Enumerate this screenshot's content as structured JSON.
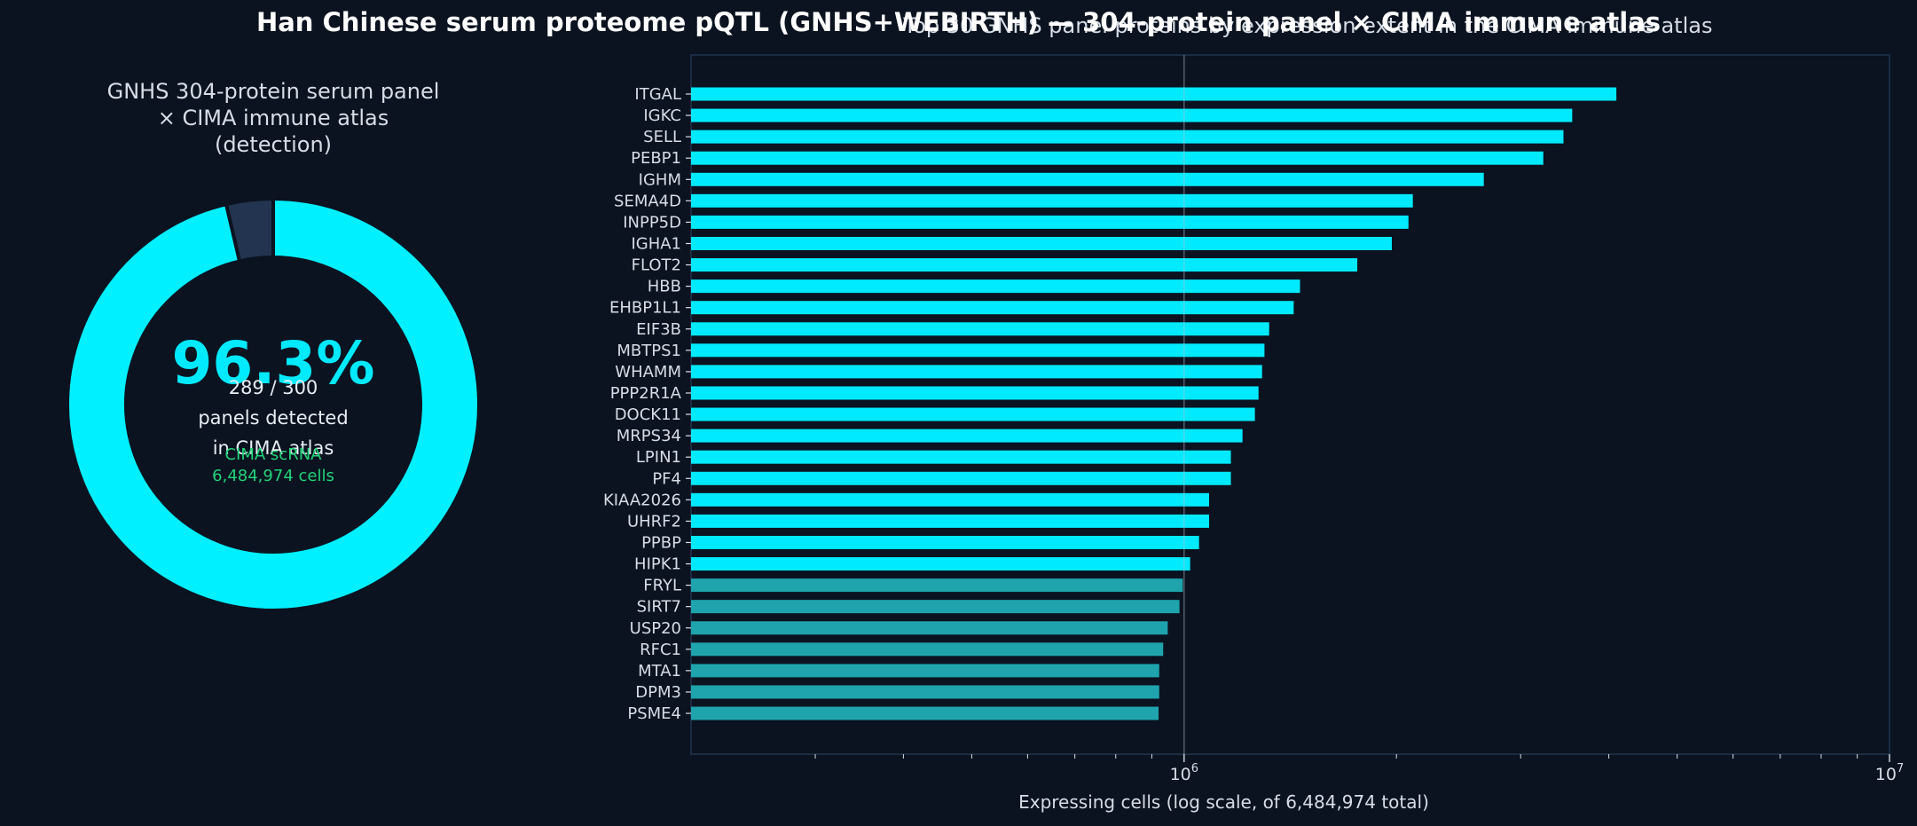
{
  "suptitle": "Han Chinese serum proteome pQTL (GNHS+WEBIRTH) — 304-protein panel × CIMA immune atlas",
  "donut": {
    "title_line1": "GNHS 304-protein serum panel",
    "title_line2": "× CIMA immune atlas (detection)",
    "percent_label": "96.3%",
    "count_label": "289 / 300",
    "sub_line1": "panels detected",
    "sub_line2": "in CIMA atlas",
    "cima_line1": "CIMA scRNA",
    "cima_line2": "6,484,974 cells",
    "colors": {
      "detected": "#00f0ff",
      "not_detected": "#22344f",
      "ring_edge": "#0b1320"
    }
  },
  "colors": {
    "background": "#0b1320",
    "bar_high": "#00eaff",
    "bar_low": "#1fa4ad",
    "axis_frame": "#1f3550",
    "reference_line": "#b9c4d0",
    "text": "#d6dde6"
  },
  "chart_data": [
    {
      "type": "pie",
      "subtype": "donut",
      "title": "GNHS 304-protein serum panel × CIMA immune atlas (detection)",
      "values": [
        289,
        11
      ],
      "total": 300
    },
    {
      "type": "bar",
      "orientation": "horizontal",
      "title": "Top 30 GNHS panel proteins by expression extent in the CIMA immune atlas",
      "xlabel": "Expressing cells (log scale, of 6,484,974 total)",
      "xscale": "log",
      "xlim": [
        200000,
        10000000
      ],
      "xticks": [
        {
          "value": 1000000,
          "base": "10",
          "exp": "6"
        },
        {
          "value": 10000000,
          "base": "10",
          "exp": "7"
        }
      ],
      "reference_line": 1000000,
      "categories": [
        "ITGAL",
        "IGKC",
        "SELL",
        "PEBP1",
        "IGHM",
        "SEMA4D",
        "INPP5D",
        "IGHA1",
        "FLOT2",
        "HBB",
        "EHBP1L1",
        "EIF3B",
        "MBTPS1",
        "WHAMM",
        "PPP2R1A",
        "DOCK11",
        "MRPS34",
        "LPIN1",
        "PF4",
        "KIAA2026",
        "UHRF2",
        "PPBP",
        "HIPK1",
        "FRYL",
        "SIRT7",
        "USP20",
        "RFC1",
        "MTA1",
        "DPM3",
        "PSME4"
      ],
      "values": [
        4100000,
        3550000,
        3450000,
        3230000,
        2660000,
        2110000,
        2080000,
        1970000,
        1760000,
        1460000,
        1430000,
        1320000,
        1300000,
        1290000,
        1275000,
        1260000,
        1210000,
        1165000,
        1165000,
        1085000,
        1085000,
        1050000,
        1020000,
        996000,
        985000,
        948000,
        934000,
        922000,
        922000,
        920000
      ],
      "grid": false
    }
  ]
}
